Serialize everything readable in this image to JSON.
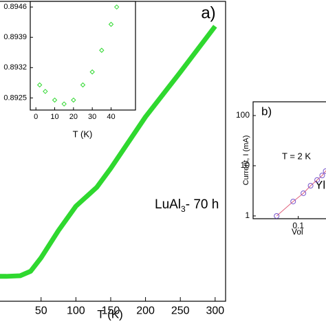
{
  "chart_data": [
    {
      "type": "line",
      "title": "a)",
      "x_label": "T (K)",
      "annotation": [
        "LuAl",
        "3",
        "- 70 h"
      ],
      "x": [
        -10,
        0,
        20,
        35,
        50,
        75,
        100,
        130,
        150,
        200,
        250,
        300
      ],
      "series": [
        {
          "color": "#2fd82f",
          "values": [
            0.083,
            0.083,
            0.085,
            0.1,
            0.145,
            0.236,
            0.317,
            0.38,
            0.443,
            0.615,
            0.764,
            0.917
          ]
        }
      ],
      "xlim": [
        -10,
        315
      ],
      "ylim": [
        0,
        1
      ],
      "xticks": [
        50,
        100,
        150,
        200,
        250,
        300
      ]
    },
    {
      "type": "scatter",
      "x_label": "T (K)",
      "x": [
        2,
        5,
        10,
        15,
        20,
        25,
        30,
        35,
        40,
        43
      ],
      "series": [
        {
          "color": "#2fd82f",
          "values": [
            0.8928,
            0.89265,
            0.89245,
            0.89236,
            0.89245,
            0.8928,
            0.8931,
            0.8936,
            0.8942,
            0.8946
          ]
        }
      ],
      "xlim": [
        -3,
        53
      ],
      "ylim": [
        0.89222,
        0.89473
      ],
      "xticks": [
        0,
        10,
        20,
        30,
        40
      ],
      "yticks": [
        0.8925,
        0.8932,
        0.8939,
        0.8946
      ]
    },
    {
      "type": "loglog",
      "title": "b)",
      "x_label": "Vol",
      "y_label": "Current, I (mA)",
      "annotations": [
        "T = 2 K",
        "Yl"
      ],
      "x": [
        0.039,
        0.08,
        0.125,
        0.171,
        0.227,
        0.283,
        0.33,
        0.377
      ],
      "series": [
        {
          "color": "#7755cc",
          "values": [
            1,
            1.94,
            2.83,
            4.0,
            5.2,
            6.4,
            7.8,
            9.7
          ]
        }
      ],
      "line_color": "#e0607a",
      "xlim": [
        0.014,
        0.4
      ],
      "ylim": [
        0.88,
        188
      ],
      "xticks": [
        0.1
      ],
      "yticks": [
        1,
        10,
        100
      ],
      "log": true
    }
  ]
}
